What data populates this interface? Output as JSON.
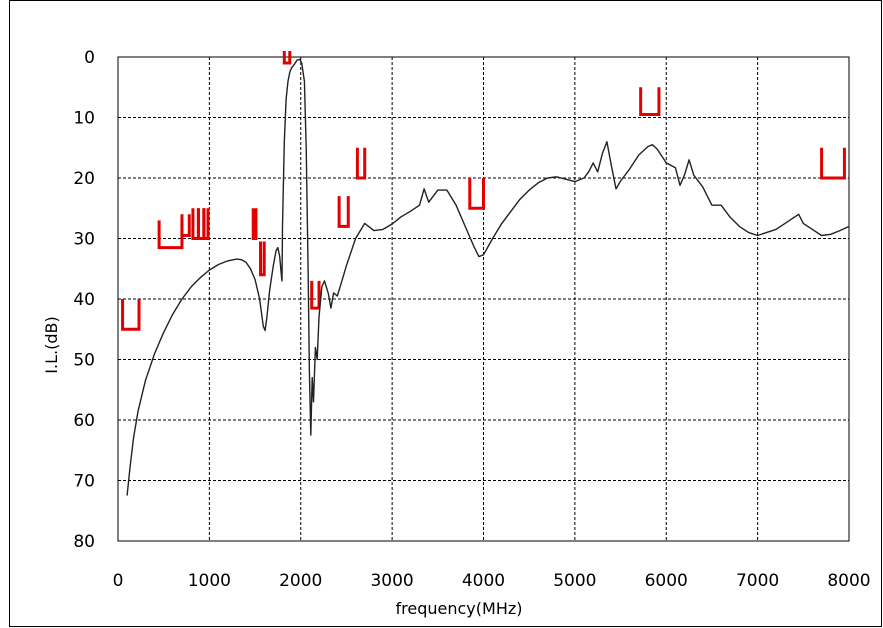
{
  "chart_data": {
    "type": "line",
    "xlabel": "frequency(MHz)",
    "ylabel": "I.L.(dB)",
    "xlim": [
      0,
      8000
    ],
    "ylim": [
      0,
      80
    ],
    "y_inverted": true,
    "grid": true,
    "x_ticks": [
      "0",
      "1000",
      "2000",
      "3000",
      "4000",
      "5000",
      "6000",
      "7000",
      "8000"
    ],
    "y_ticks": [
      "0",
      "10",
      "20",
      "30",
      "40",
      "50",
      "60",
      "70",
      "80"
    ],
    "colors": {
      "curve": "#222222",
      "mask": "#e00000",
      "grid": "#000000"
    },
    "series": [
      {
        "role": "measured-insertion-loss",
        "points": [
          [
            100,
            72.5
          ],
          [
            130,
            68
          ],
          [
            170,
            63
          ],
          [
            220,
            58.5
          ],
          [
            300,
            53.5
          ],
          [
            400,
            49
          ],
          [
            500,
            45.5
          ],
          [
            600,
            42.5
          ],
          [
            700,
            40
          ],
          [
            800,
            38
          ],
          [
            900,
            36.5
          ],
          [
            1000,
            35.2
          ],
          [
            1100,
            34.3
          ],
          [
            1200,
            33.7
          ],
          [
            1300,
            33.4
          ],
          [
            1350,
            33.5
          ],
          [
            1400,
            33.9
          ],
          [
            1450,
            35
          ],
          [
            1500,
            36.8
          ],
          [
            1550,
            40
          ],
          [
            1590,
            44.5
          ],
          [
            1610,
            45.2
          ],
          [
            1630,
            43
          ],
          [
            1660,
            38.5
          ],
          [
            1700,
            34.5
          ],
          [
            1730,
            32
          ],
          [
            1750,
            31.5
          ],
          [
            1770,
            33
          ],
          [
            1790,
            36.5
          ],
          [
            1795,
            37
          ],
          [
            1800,
            28
          ],
          [
            1820,
            14
          ],
          [
            1840,
            7
          ],
          [
            1860,
            4
          ],
          [
            1880,
            2.5
          ],
          [
            1900,
            1.8
          ],
          [
            1930,
            1.2
          ],
          [
            1960,
            0.5
          ],
          [
            1990,
            0.4
          ],
          [
            2010,
            1
          ],
          [
            2040,
            4
          ],
          [
            2060,
            15
          ],
          [
            2080,
            35
          ],
          [
            2095,
            52
          ],
          [
            2110,
            62.5
          ],
          [
            2125,
            53
          ],
          [
            2140,
            57
          ],
          [
            2160,
            48
          ],
          [
            2180,
            50
          ],
          [
            2200,
            43
          ],
          [
            2230,
            38
          ],
          [
            2260,
            37
          ],
          [
            2300,
            39
          ],
          [
            2330,
            41.5
          ],
          [
            2360,
            39
          ],
          [
            2400,
            39.5
          ],
          [
            2450,
            37
          ],
          [
            2500,
            34.5
          ],
          [
            2600,
            30
          ],
          [
            2700,
            27.5
          ],
          [
            2800,
            28.7
          ],
          [
            2900,
            28.5
          ],
          [
            3000,
            27.6
          ],
          [
            3100,
            26.4
          ],
          [
            3200,
            25.5
          ],
          [
            3300,
            24.5
          ],
          [
            3350,
            21.8
          ],
          [
            3400,
            24
          ],
          [
            3500,
            22
          ],
          [
            3600,
            22
          ],
          [
            3700,
            24.5
          ],
          [
            3800,
            28
          ],
          [
            3900,
            31.5
          ],
          [
            3950,
            33
          ],
          [
            4000,
            32.7
          ],
          [
            4100,
            30
          ],
          [
            4200,
            27.5
          ],
          [
            4300,
            25.5
          ],
          [
            4400,
            23.5
          ],
          [
            4500,
            22
          ],
          [
            4600,
            20.8
          ],
          [
            4700,
            20
          ],
          [
            4800,
            19.8
          ],
          [
            4900,
            20.2
          ],
          [
            5000,
            20.6
          ],
          [
            5100,
            20
          ],
          [
            5150,
            19
          ],
          [
            5200,
            17.5
          ],
          [
            5250,
            19
          ],
          [
            5300,
            16
          ],
          [
            5350,
            14
          ],
          [
            5400,
            18
          ],
          [
            5450,
            21.8
          ],
          [
            5500,
            20.5
          ],
          [
            5600,
            18.5
          ],
          [
            5700,
            16.2
          ],
          [
            5800,
            14.8
          ],
          [
            5850,
            14.5
          ],
          [
            5900,
            15.2
          ],
          [
            6000,
            17.5
          ],
          [
            6100,
            18.3
          ],
          [
            6150,
            21.2
          ],
          [
            6200,
            19.5
          ],
          [
            6250,
            17
          ],
          [
            6300,
            19.5
          ],
          [
            6400,
            21.5
          ],
          [
            6500,
            24.5
          ],
          [
            6600,
            24.5
          ],
          [
            6700,
            26.5
          ],
          [
            6800,
            28
          ],
          [
            6900,
            29
          ],
          [
            7000,
            29.5
          ],
          [
            7100,
            29
          ],
          [
            7200,
            28.5
          ],
          [
            7300,
            27.5
          ],
          [
            7400,
            26.5
          ],
          [
            7450,
            26
          ],
          [
            7500,
            27.5
          ],
          [
            7600,
            28.5
          ],
          [
            7700,
            29.5
          ],
          [
            7800,
            29.3
          ],
          [
            7900,
            28.7
          ],
          [
            8000,
            28
          ]
        ]
      }
    ],
    "masks": [
      {
        "x1": 50,
        "x2": 230,
        "y": 45,
        "top": 40
      },
      {
        "x1": 450,
        "x2": 700,
        "y": 31.5,
        "top": 27
      },
      {
        "x1": 700,
        "x2": 780,
        "y": 29.5,
        "top": 26
      },
      {
        "x1": 820,
        "x2": 880,
        "y": 30,
        "top": 25
      },
      {
        "x1": 880,
        "x2": 940,
        "y": 30,
        "top": 25
      },
      {
        "x1": 940,
        "x2": 985,
        "y": 30,
        "top": 25
      },
      {
        "x1": 1480,
        "x2": 1510,
        "y": 30,
        "top": 25
      },
      {
        "x1": 1560,
        "x2": 1600,
        "y": 36,
        "top": 30.5
      },
      {
        "x1": 1820,
        "x2": 1880,
        "y": 1,
        "top": -1
      },
      {
        "x1": 2120,
        "x2": 2200,
        "y": 41.5,
        "top": 37
      },
      {
        "x1": 2420,
        "x2": 2520,
        "y": 28,
        "top": 23
      },
      {
        "x1": 2620,
        "x2": 2700,
        "y": 20,
        "top": 15
      },
      {
        "x1": 3850,
        "x2": 4000,
        "y": 25,
        "top": 20
      },
      {
        "x1": 5720,
        "x2": 5920,
        "y": 9.5,
        "top": 5
      },
      {
        "x1": 7700,
        "x2": 7950,
        "y": 20,
        "top": 15
      }
    ]
  }
}
